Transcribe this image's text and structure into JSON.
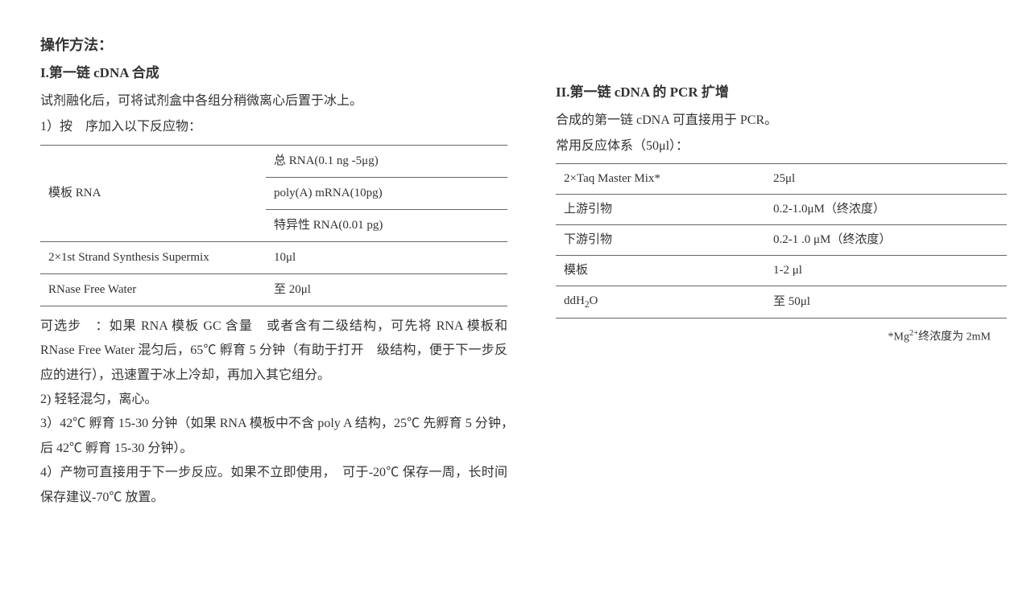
{
  "left": {
    "title_main": "操作方法：",
    "title_section": "I.第一链 cDNA 合成",
    "intro": "试剂融化后，可将试剂盒中各组分稍微离心后置于冰上。",
    "step1_intro": "1）按　序加入以下反应物：",
    "table": {
      "rows": [
        {
          "c1": "模板 RNA",
          "c2_lines": [
            "总 RNA(0.1 ng -5μg)",
            "poly(A) mRNA(10pg)",
            "特异性 RNA(0.01 pg)"
          ],
          "rowspan": 3
        },
        {
          "c1": "2×1st Strand Synthesis Supermix",
          "c2": "10μl"
        },
        {
          "c1": "RNase Free Water",
          "c2": "至 20μl"
        }
      ]
    },
    "optional": "可选步　：如果 RNA 模板 GC 含量　或者含有二级结构，可先将 RNA 模板和 RNase Free Water 混匀后，65℃ 孵育 5 分钟（有助于打开　级结构，便于下一步反应的进行），迅速置于冰上冷却，再加入其它组分。",
    "step2": "2) 轻轻混匀，离心。",
    "step3": "3）42℃ 孵育 15-30 分钟（如果 RNA 模板中不含 poly A 结构，25℃ 先孵育 5 分钟，　后 42℃ 孵育 15-30 分钟）。",
    "step4": "4）产物可直接用于下一步反应。如果不立即使用，　可于-20℃ 保存一周，长时间保存建议-70℃ 放置。"
  },
  "right": {
    "title_section": "II.第一链 cDNA 的 PCR 扩增",
    "intro": "合成的第一链 cDNA 可直接用于 PCR。",
    "subtitle": "常用反应体系（50μl）：",
    "table": {
      "rows": [
        {
          "c1": "2×Taq Master Mix*",
          "c2": "25μl"
        },
        {
          "c1": "上游引物",
          "c2": "0.2-1.0μM（终浓度）"
        },
        {
          "c1": "下游引物",
          "c2": "0.2-1 .0 μM（终浓度）"
        },
        {
          "c1": "模板",
          "c2": "1-2 μl"
        },
        {
          "c1_html": "ddH<sub>2</sub>O",
          "c2": "至 50μl"
        }
      ]
    },
    "footnote_html": "*Mg<sup>2+</sup>终浓度为 2mM"
  },
  "colors": {
    "text": "#333333",
    "border": "#666666",
    "background": "#ffffff"
  }
}
